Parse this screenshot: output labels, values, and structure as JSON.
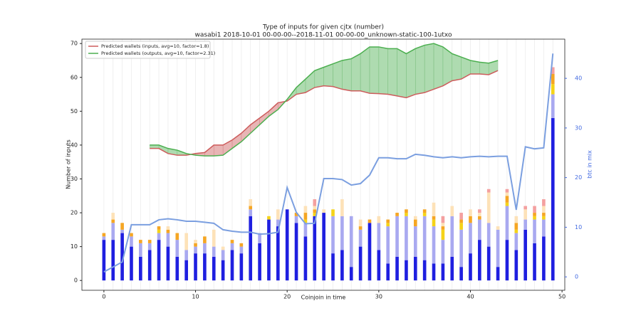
{
  "chart_data": {
    "type": "bar",
    "title": "Type of inputs for given cjtx (number)",
    "subtitle": "wasabi1 2018-10-01 00-00-00--2018-11-01 00-00-00_unknown-static-100-1utxo",
    "xlabel": "Coinjoin in time",
    "ylabel": "Number of inputs",
    "y2label": "btc in mix",
    "x": [
      0,
      1,
      2,
      3,
      4,
      5,
      6,
      7,
      8,
      9,
      10,
      11,
      12,
      13,
      14,
      15,
      16,
      17,
      18,
      19,
      20,
      21,
      22,
      23,
      24,
      25,
      26,
      27,
      28,
      29,
      30,
      31,
      32,
      33,
      34,
      35,
      36,
      37,
      38,
      39,
      40,
      41,
      42,
      43,
      44,
      45,
      46,
      47,
      48,
      49
    ],
    "series": [
      {
        "color": "#1f1fe0",
        "values": [
          12,
          12,
          14,
          10,
          7,
          9,
          12,
          10,
          7,
          6,
          8,
          8,
          7,
          6,
          9,
          8,
          19,
          11,
          18,
          16,
          21,
          17,
          13,
          19,
          20,
          8,
          9,
          4,
          10,
          17,
          9,
          5,
          7,
          6,
          7,
          6,
          5,
          5,
          7,
          4,
          8,
          12,
          10,
          4,
          12,
          9,
          15,
          11,
          13,
          48
        ]
      },
      {
        "color": "#a9a9f0",
        "values": [
          1,
          5,
          1,
          3,
          4,
          2,
          2,
          4,
          5,
          3,
          2,
          3,
          3,
          3,
          2,
          2,
          2,
          3,
          0,
          2,
          0,
          2,
          4,
          0,
          0,
          11,
          10,
          15,
          5,
          0,
          8,
          11,
          12,
          13,
          9,
          13,
          11,
          7,
          12,
          11,
          9,
          6,
          7,
          11,
          10,
          5,
          3,
          7,
          5,
          7
        ]
      },
      {
        "color": "#f5d318",
        "values": [
          0,
          0,
          0,
          0,
          0,
          0,
          1,
          0,
          0,
          0,
          0,
          0,
          0,
          0,
          0,
          0,
          0,
          0,
          1,
          0,
          0,
          0,
          1,
          1,
          0,
          2,
          0,
          0,
          0,
          0,
          0,
          1,
          0,
          1,
          0,
          1,
          2,
          3,
          0,
          2,
          0,
          0,
          0,
          0,
          1,
          1,
          0,
          1,
          1,
          3
        ]
      },
      {
        "color": "#f5a623",
        "values": [
          1,
          1,
          2,
          1,
          1,
          1,
          1,
          1,
          2,
          0,
          1,
          2,
          0,
          0,
          1,
          1,
          1,
          0,
          0,
          0,
          0,
          1,
          2,
          1,
          0,
          0,
          0,
          0,
          1,
          1,
          0,
          1,
          1,
          1,
          2,
          1,
          1,
          1,
          0,
          1,
          2,
          1,
          0,
          0,
          2,
          2,
          0,
          1,
          1,
          3
        ]
      },
      {
        "color": "#fde2b8",
        "values": [
          0,
          2,
          0,
          0,
          0,
          0,
          0,
          1,
          0,
          5,
          1,
          0,
          5,
          1,
          0,
          0,
          2,
          0,
          0,
          3,
          0,
          0,
          2,
          1,
          1,
          0,
          5,
          0,
          2,
          0,
          2,
          0,
          0,
          0,
          1,
          0,
          4,
          1,
          3,
          0,
          2,
          1,
          9,
          1,
          1,
          2,
          3,
          0,
          2,
          0
        ]
      },
      {
        "color": "#f4a0a0",
        "values": [
          0,
          0,
          0,
          0,
          0,
          0,
          0,
          0,
          0,
          0,
          0,
          0,
          0,
          0,
          0,
          0,
          0,
          0,
          0,
          0,
          0,
          0,
          0,
          2,
          0,
          0,
          0,
          0,
          0,
          0,
          0,
          0,
          0,
          0,
          0,
          0,
          0,
          2,
          0,
          2,
          0,
          1,
          1,
          0,
          1,
          0,
          1,
          2,
          2,
          2
        ]
      }
    ],
    "lines": [
      {
        "name": "Predicted wallets (inputs, avg=10, factor=1.8)",
        "color": "#cd5c5c",
        "x": [
          5,
          6,
          7,
          8,
          9,
          10,
          11,
          12,
          13,
          14,
          15,
          16,
          17,
          18,
          19,
          20,
          21,
          22,
          23,
          24,
          25,
          26,
          27,
          28,
          29,
          30,
          31,
          32,
          33,
          34,
          35,
          36,
          37,
          38,
          39,
          40,
          41,
          42,
          43
        ],
        "values": [
          39,
          39,
          37.5,
          37,
          37,
          37.5,
          37.8,
          40,
          40,
          41.5,
          43.5,
          46,
          48,
          50,
          52.5,
          53,
          55,
          55.5,
          57,
          57.5,
          57.3,
          56.5,
          56,
          56,
          55.3,
          55.2,
          55,
          54.5,
          54,
          55,
          55.5,
          56.5,
          57.5,
          59,
          59.5,
          61,
          61,
          60.8,
          62
        ]
      },
      {
        "name": "Predicted wallets (outputs, avg=10, factor=2.31)",
        "color": "#4caf50",
        "x": [
          5,
          6,
          7,
          8,
          9,
          10,
          11,
          12,
          13,
          14,
          15,
          16,
          17,
          18,
          19,
          20,
          21,
          22,
          23,
          24,
          25,
          26,
          27,
          28,
          29,
          30,
          31,
          32,
          33,
          34,
          35,
          36,
          37,
          38,
          39,
          40,
          41,
          42,
          43
        ],
        "values": [
          40,
          40,
          39,
          38.5,
          37.5,
          37,
          36.8,
          36.8,
          37,
          39,
          41,
          43.5,
          46,
          48.5,
          50.5,
          53.5,
          57,
          59.5,
          62,
          63,
          64,
          65,
          65.5,
          67,
          69,
          69,
          68.5,
          68.5,
          67,
          68.5,
          69.5,
          70,
          69,
          67,
          66,
          65,
          64.5,
          64.2,
          65
        ]
      }
    ],
    "y2_series": {
      "color": "#7b9fe0",
      "axis": "y2",
      "values": [
        1,
        2,
        3,
        10.5,
        10.5,
        10.5,
        11.5,
        11.7,
        11.5,
        11.2,
        11.2,
        11,
        10.8,
        9.5,
        9.2,
        9,
        9,
        8.6,
        8.7,
        9,
        18,
        13,
        10.7,
        10.8,
        19.8,
        19.8,
        19.6,
        18.5,
        18.8,
        20.5,
        24,
        24,
        23.8,
        23.8,
        24.7,
        24.5,
        24.2,
        24,
        24.2,
        24,
        24.2,
        24.3,
        24.2,
        24.3,
        24.3,
        13.5,
        26.2,
        25.8,
        26,
        45
      ]
    },
    "xlim": [
      -2.4,
      50.3
    ],
    "xticks": [
      0,
      10,
      20,
      30,
      40,
      50
    ],
    "ylim": [
      -2.9,
      71.3
    ],
    "yticks": [
      0,
      10,
      20,
      30,
      40,
      50,
      60,
      70
    ],
    "y2lim": [
      -2.7,
      47.9
    ],
    "y2ticks": [
      0,
      10,
      20,
      30,
      40
    ],
    "legend": "upper left"
  }
}
